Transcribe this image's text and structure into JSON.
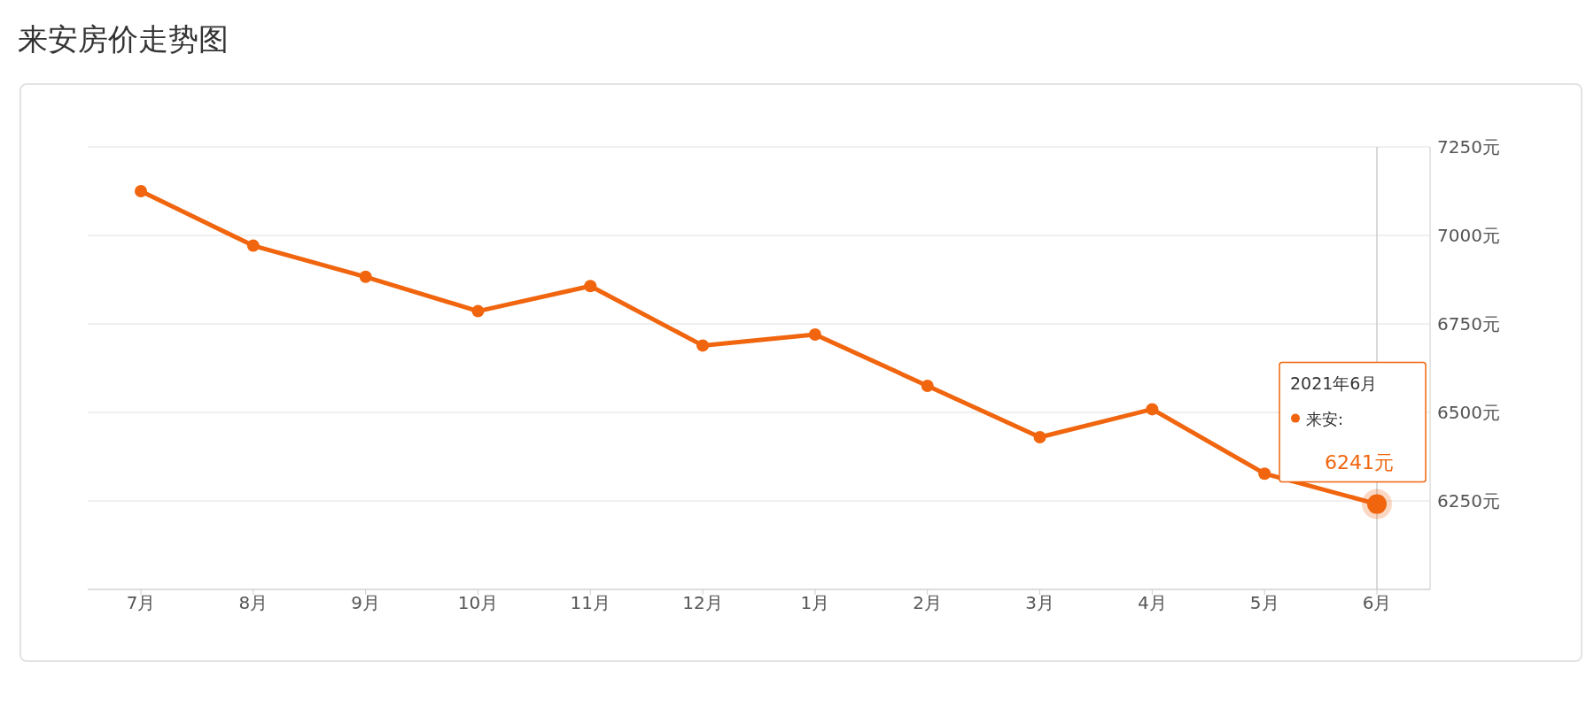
{
  "chart_data": {
    "type": "line",
    "title": "来安房价走势图",
    "categories": [
      "7月",
      "8月",
      "9月",
      "10月",
      "11月",
      "12月",
      "1月",
      "2月",
      "3月",
      "4月",
      "5月",
      "6月"
    ],
    "series": [
      {
        "name": "来安:",
        "color": "#f0650e",
        "values": [
          7125,
          6971,
          6883,
          6786,
          6857,
          6689,
          6720,
          6575,
          6430,
          6509,
          6327,
          6241
        ],
        "value_labels": [
          null,
          null,
          null,
          null,
          null,
          null,
          null,
          null,
          null,
          null,
          null,
          "6241元"
        ]
      }
    ],
    "annotations": [
      "2021年6月"
    ],
    "ref_lines": [
      {
        "axis": "x",
        "value": "6月",
        "color": "#cccccc"
      }
    ],
    "ylim": [
      6000,
      7250
    ],
    "yticks": [
      {
        "value": 6000,
        "label": null
      },
      {
        "value": 6250,
        "label": "6250元"
      },
      {
        "value": 6500,
        "label": "6500元"
      },
      {
        "value": 6750,
        "label": "6750元"
      },
      {
        "value": 7000,
        "label": "7000元"
      },
      {
        "value": 7250,
        "label": "7250元"
      }
    ],
    "grid": "y",
    "legend": "right",
    "marker": "circle",
    "line_style": "solid"
  }
}
